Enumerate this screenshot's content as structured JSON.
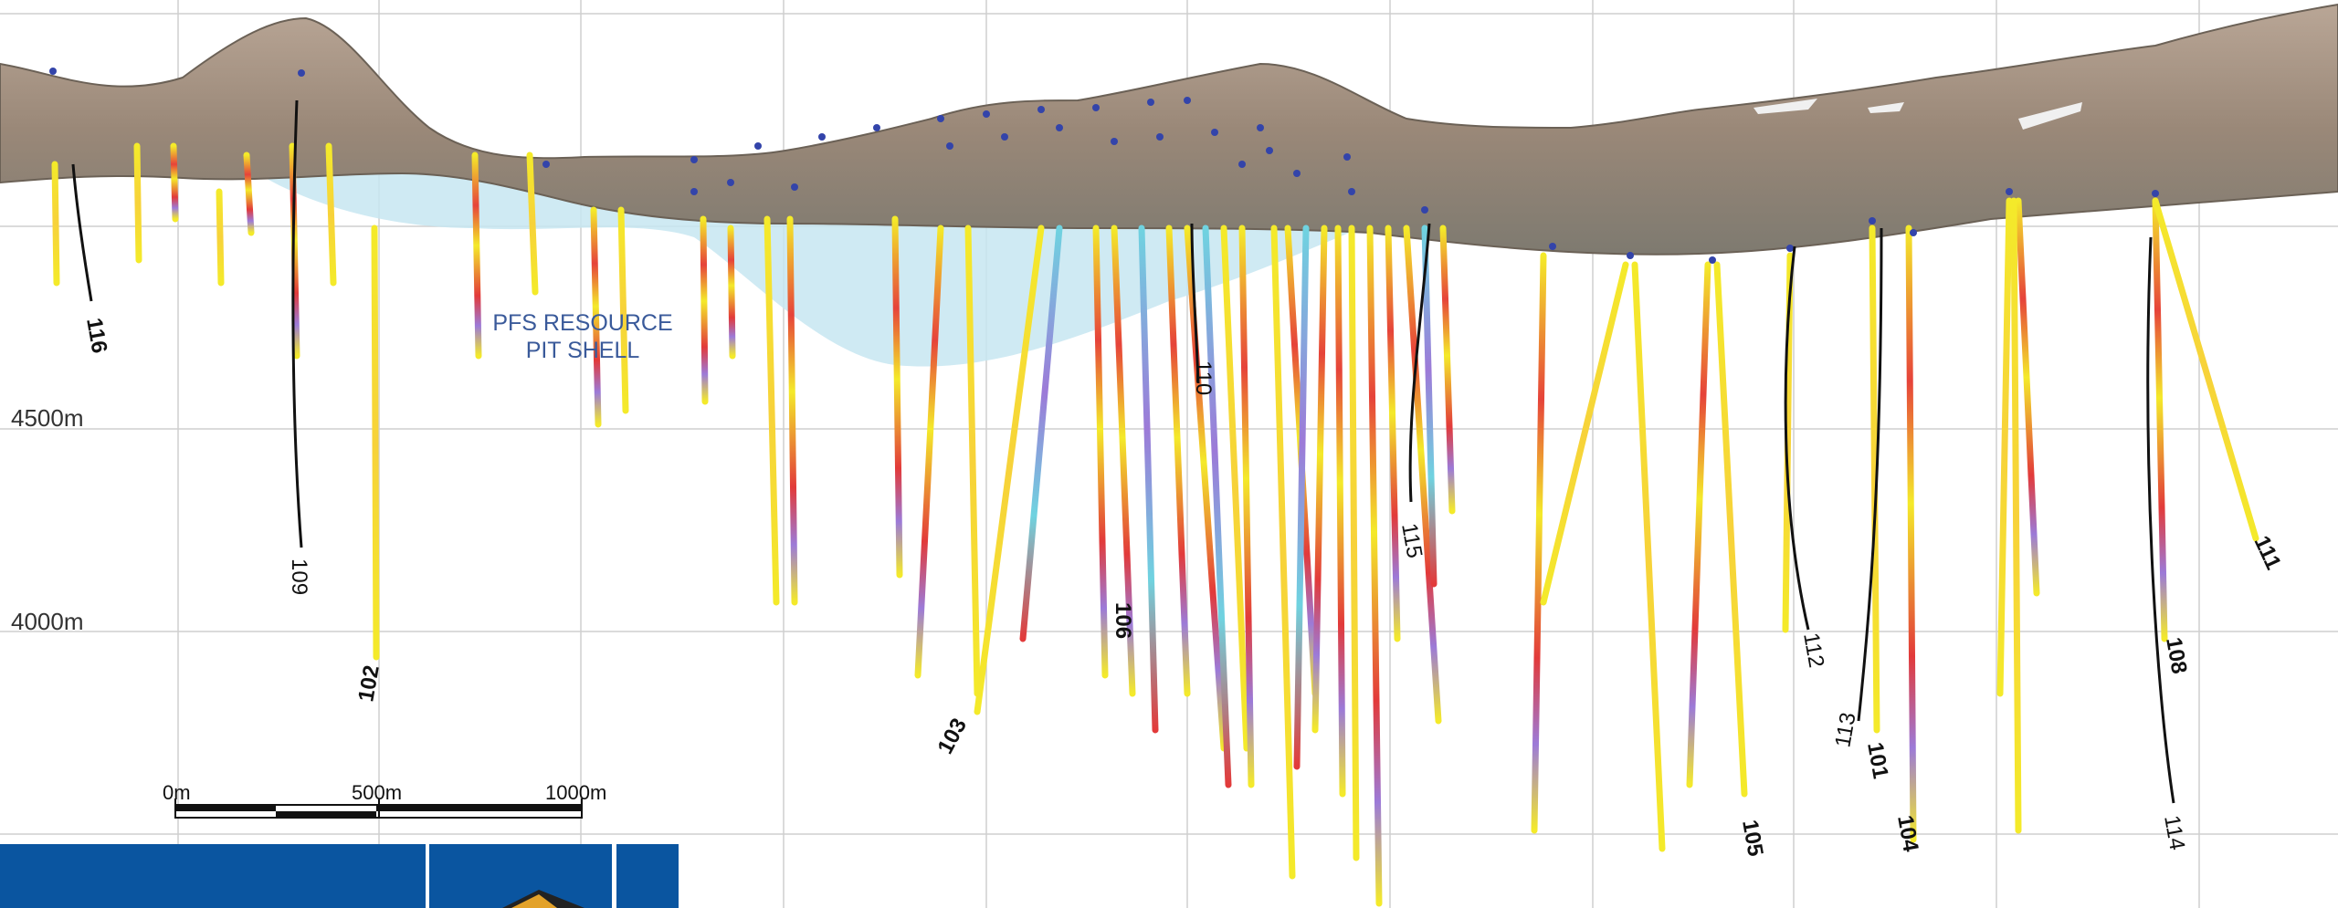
{
  "elevation_labels": {
    "upper": "4500m",
    "lower": "4000m"
  },
  "pit_shell": {
    "line1": "PFS RESOURCE",
    "line2": "PIT SHELL"
  },
  "scale_bar": {
    "start": "0m",
    "mid": "500m",
    "end": "1000m"
  },
  "hole_ids": {
    "h116": "116",
    "h109": "109",
    "h102": "102",
    "h103": "103",
    "h106": "106",
    "h110": "110",
    "h115": "115",
    "h105": "105",
    "h112": "112",
    "h113": "113",
    "h101": "101",
    "h104": "104",
    "h108": "108",
    "h114": "114",
    "h111": "111"
  },
  "colors": {
    "grid": "#c8c8c8",
    "terrain": "#9b8a7a",
    "pit_shell": "#bfe3ef",
    "collar": "#3344aa",
    "drill_yellow": "#f2e829",
    "drill_red": "#e23a3a",
    "drill_cyan": "#6fd3e0",
    "drill_purple": "#9c7ad8",
    "logo_blue": "#0a55a0"
  }
}
